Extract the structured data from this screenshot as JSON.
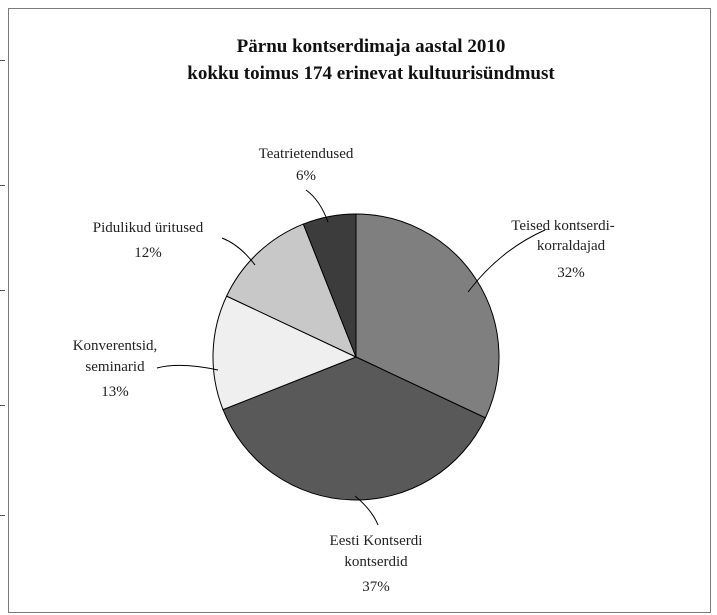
{
  "chart_data": {
    "type": "pie",
    "title": [
      "Pärnu kontserdimaja aastal 2010",
      "kokku toimus 174 erinevat kultuurisündmust"
    ],
    "slices": [
      {
        "label": [
          "Teised kontserdi-",
          "korraldajad"
        ],
        "value": 32,
        "pct": "32%",
        "color": "#7f7f7f"
      },
      {
        "label": [
          "Eesti Kontserdi",
          "kontserdid"
        ],
        "value": 37,
        "pct": "37%",
        "color": "#595959"
      },
      {
        "label": [
          "Konverentsid,",
          "seminarid"
        ],
        "value": 13,
        "pct": "13%",
        "color": "#efefef"
      },
      {
        "label": [
          "Pidulikud üritused"
        ],
        "value": 12,
        "pct": "12%",
        "color": "#c8c8c8"
      },
      {
        "label": [
          "Teatrietendused"
        ],
        "value": 6,
        "pct": "6%",
        "color": "#3c3c3c"
      }
    ],
    "start_angle": "12 o'clock",
    "direction": "clockwise"
  }
}
